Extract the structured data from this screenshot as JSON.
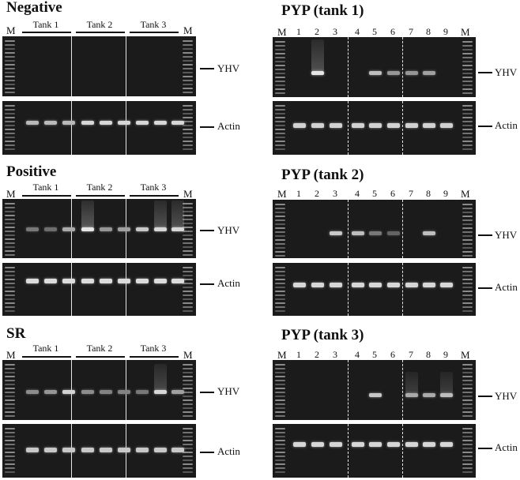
{
  "figure": {
    "ladder_label": "M",
    "left_panels": [
      {
        "title": "Negative",
        "tanks": [
          "Tank 1",
          "Tank 2",
          "Tank 3"
        ],
        "markers": {
          "target": "YHV",
          "control": "Actin"
        }
      },
      {
        "title": "Positive",
        "tanks": [
          "Tank 1",
          "Tank 2",
          "Tank 3"
        ],
        "markers": {
          "target": "YHV",
          "control": "Actin"
        }
      },
      {
        "title": "SR",
        "tanks": [
          "Tank 1",
          "Tank 2",
          "Tank 3"
        ],
        "markers": {
          "target": "YHV",
          "control": "Actin"
        }
      }
    ],
    "right_panels": [
      {
        "title": "PYP (tank 1)",
        "lanes": [
          "1",
          "2",
          "3",
          "4",
          "5",
          "6",
          "7",
          "8",
          "9"
        ],
        "markers": {
          "target": "YHV",
          "control": "Actin"
        }
      },
      {
        "title": "PYP (tank 2)",
        "lanes": [
          "1",
          "2",
          "3",
          "4",
          "5",
          "6",
          "7",
          "8",
          "9"
        ],
        "markers": {
          "target": "YHV",
          "control": "Actin"
        }
      },
      {
        "title": "PYP (tank 3)",
        "lanes": [
          "1",
          "2",
          "3",
          "4",
          "5",
          "6",
          "7",
          "8",
          "9"
        ],
        "markers": {
          "target": "YHV",
          "control": "Actin"
        }
      }
    ]
  },
  "colors": {
    "gel_background": "#1b1b1b",
    "band": "#d8d8d8",
    "separator": "#e6e6e6"
  }
}
